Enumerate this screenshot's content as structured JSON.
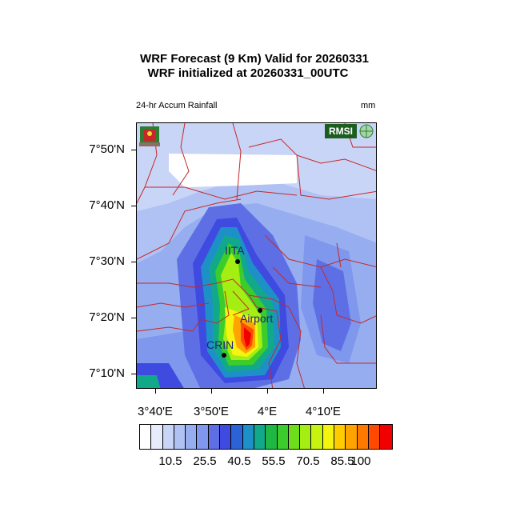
{
  "header": {
    "line1": "WRF Forecast (9 Km) Valid for 20260331",
    "line2": "WRF initialized at 20260331_00UTC"
  },
  "field_label": "24-hr Accum Rainfall",
  "units_label": "mm",
  "logo": {
    "rmsi_text": "RMSI",
    "left_icon": "state-emblem-icon"
  },
  "latitudes": [
    "7°50'N",
    "7°40'N",
    "7°30'N",
    "7°20'N",
    "7°10'N"
  ],
  "longitudes": [
    "3°40'E",
    "3°50'E",
    "4°E",
    "4°10'E"
  ],
  "locations": [
    {
      "name": "IITA"
    },
    {
      "name": "Airport"
    },
    {
      "name": "CRIN"
    }
  ],
  "colorbar": {
    "colors": [
      "#ffffff",
      "#e6ecfb",
      "#c9d5f7",
      "#b0c2f4",
      "#96adf0",
      "#7f97ec",
      "#5e6fe6",
      "#3f4ae0",
      "#2b63d6",
      "#1e90c8",
      "#12a88a",
      "#20b845",
      "#3ccc2c",
      "#6fde1a",
      "#a5ee13",
      "#c6f410",
      "#f4f410",
      "#ffcc00",
      "#ffa300",
      "#ff7800",
      "#ff4a00",
      "#f00000"
    ],
    "labels": [
      "10.5",
      "25.5",
      "40.5",
      "55.5",
      "70.5",
      "85.5",
      "100"
    ]
  }
}
